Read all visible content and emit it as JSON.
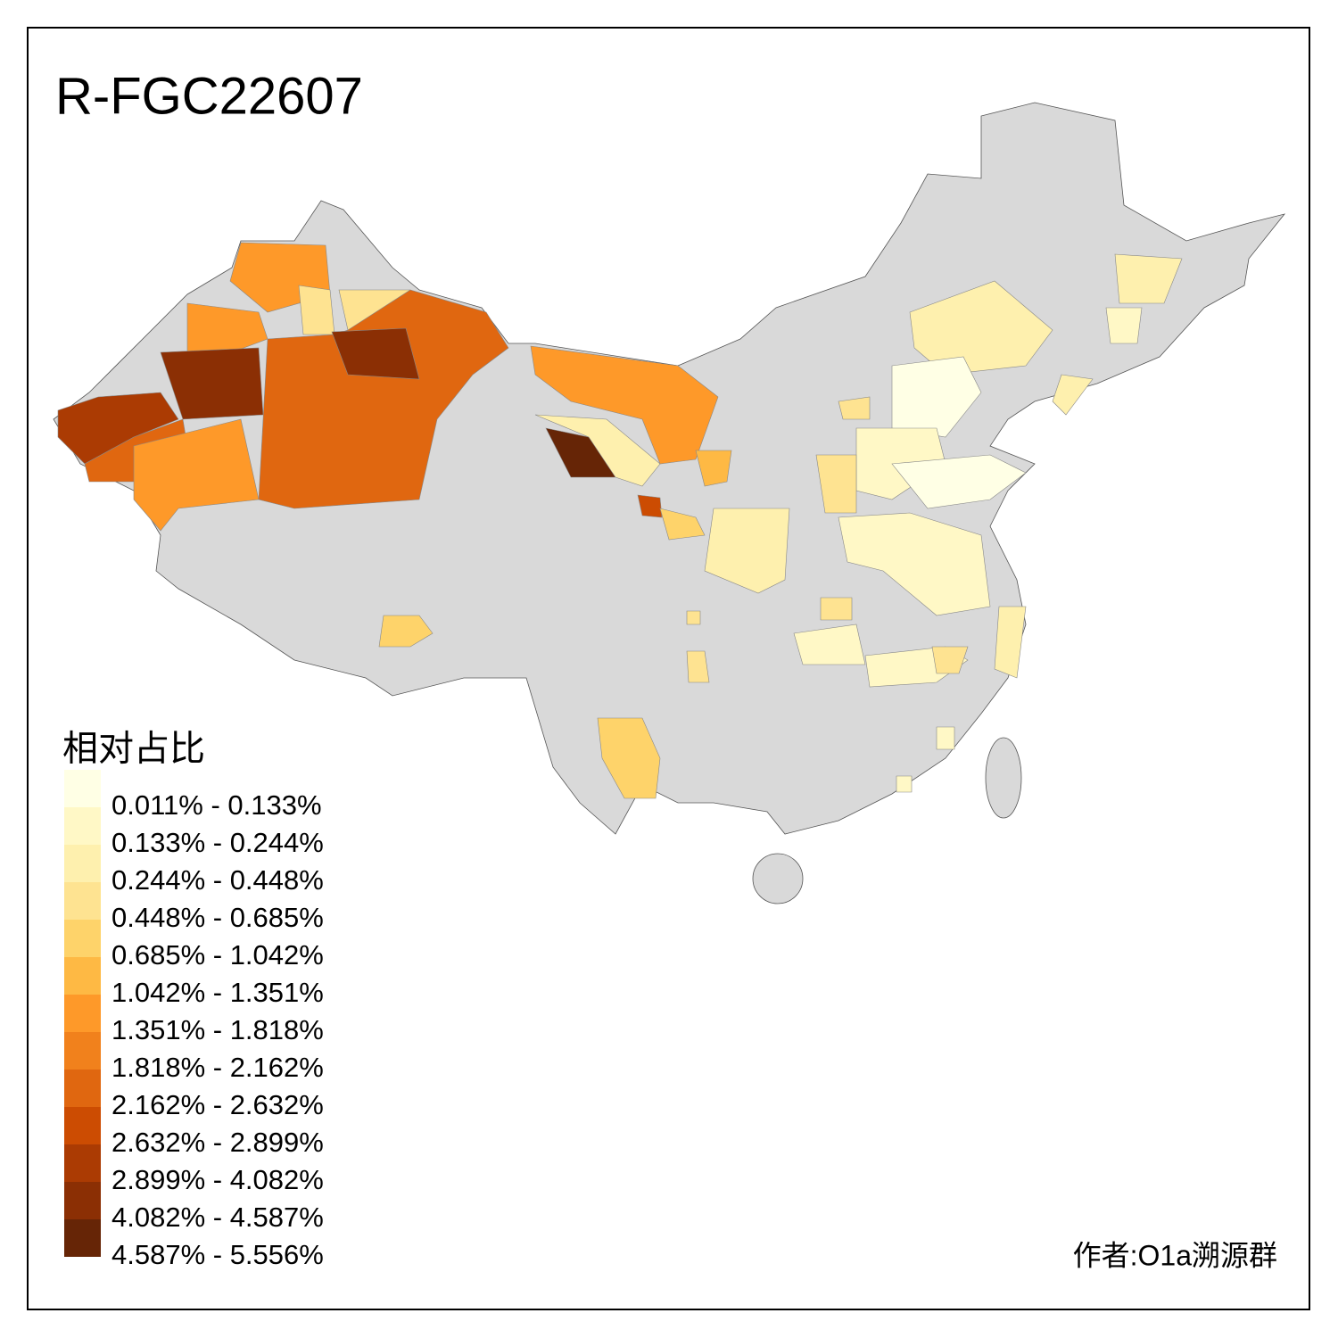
{
  "title": "R-FGC22607",
  "legend": {
    "title": "相对占比",
    "items": [
      {
        "label": "0.011% - 0.133%",
        "color": "#ffffe5"
      },
      {
        "label": "0.133% - 0.244%",
        "color": "#fff8c6"
      },
      {
        "label": "0.244% - 0.448%",
        "color": "#fef0ae"
      },
      {
        "label": "0.448% - 0.685%",
        "color": "#fee391"
      },
      {
        "label": "0.685% - 1.042%",
        "color": "#fed36a"
      },
      {
        "label": "1.042% - 1.351%",
        "color": "#feb944"
      },
      {
        "label": "1.351% - 1.818%",
        "color": "#fe9929"
      },
      {
        "label": "1.818% - 2.162%",
        "color": "#f1811c"
      },
      {
        "label": "2.162% - 2.632%",
        "color": "#e06710"
      },
      {
        "label": "2.632% - 2.899%",
        "color": "#cc4c02"
      },
      {
        "label": "2.899% - 4.082%",
        "color": "#ab3b03"
      },
      {
        "label": "4.082% - 4.587%",
        "color": "#8b2f04"
      },
      {
        "label": "4.587% - 5.556%",
        "color": "#662506"
      }
    ]
  },
  "credit": "作者:O1a溯源群"
}
